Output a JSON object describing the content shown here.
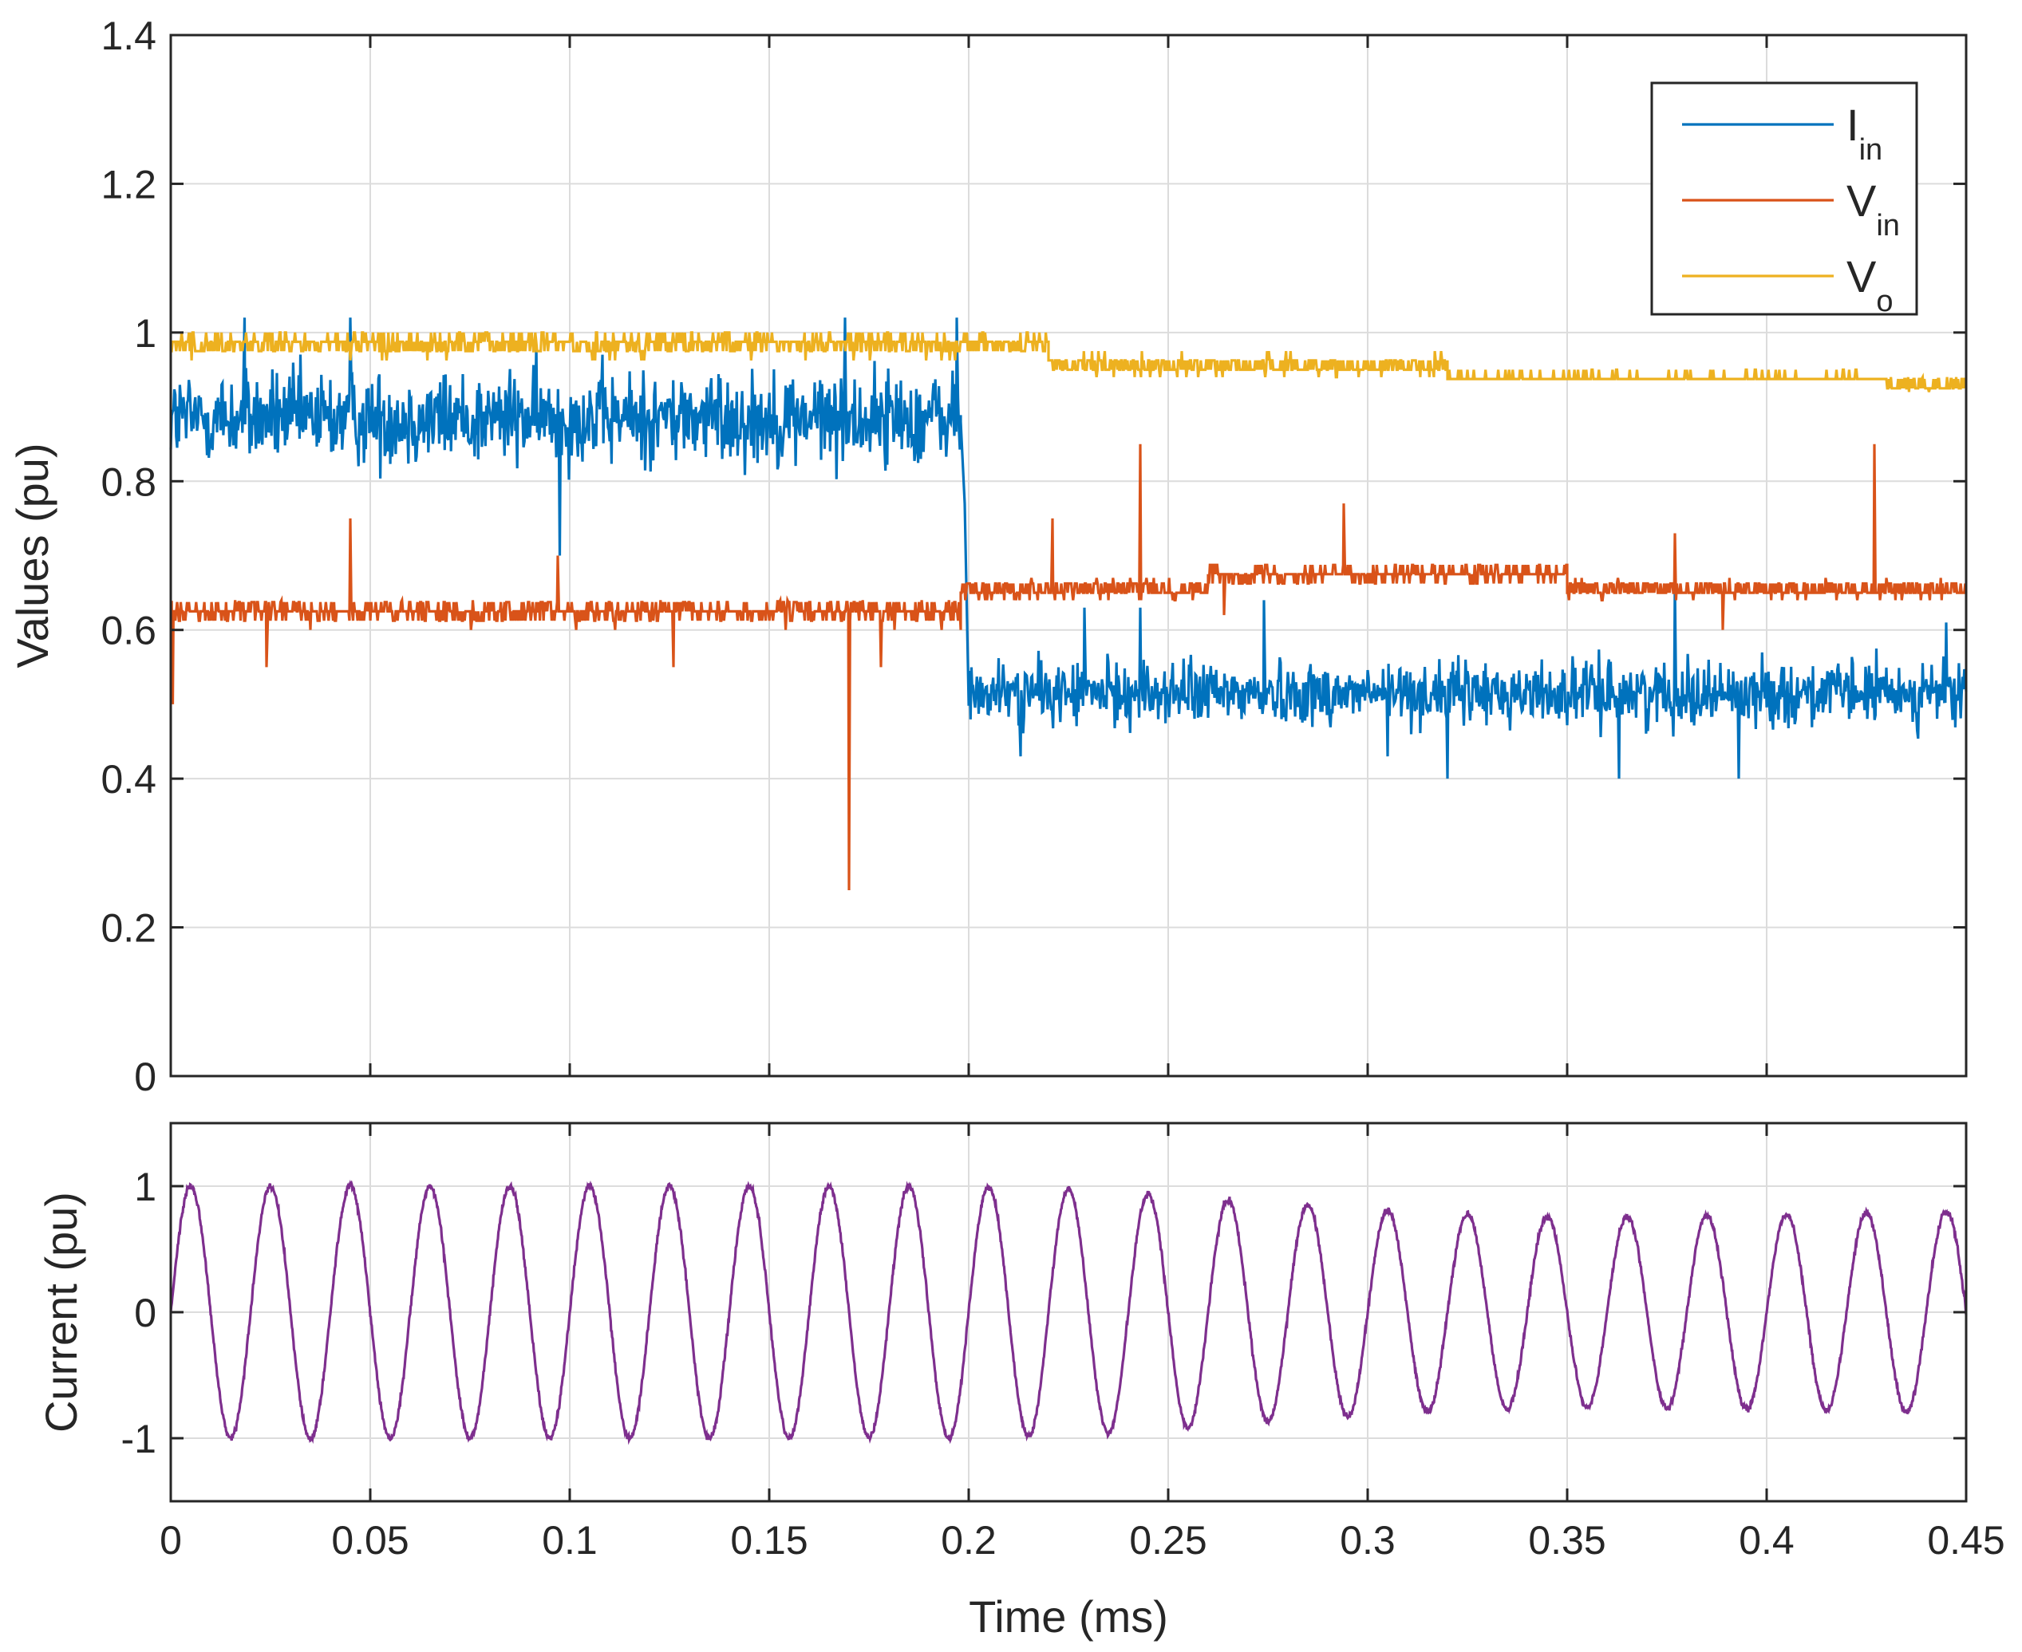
{
  "chart_data": [
    {
      "type": "line",
      "title": "",
      "xlabel": "",
      "ylabel": "Values (pu)",
      "xlim": [
        0,
        0.45
      ],
      "ylim": [
        0,
        1.4
      ],
      "grid": true,
      "legend": {
        "placement": "top-right"
      },
      "xticks": [
        0,
        0.05,
        0.1,
        0.15,
        0.2,
        0.25,
        0.3,
        0.35,
        0.4,
        0.45
      ],
      "xtick_labels": [
        "0",
        "0.05",
        "0.1",
        "0.15",
        "0.2",
        "0.25",
        "0.3",
        "0.35",
        "0.4",
        "0.45"
      ],
      "yticks": [
        0,
        0.2,
        0.4,
        0.6,
        0.8,
        1,
        1.2,
        1.4
      ],
      "ytick_labels": [
        "0",
        "0.2",
        "0.4",
        "0.6",
        "0.8",
        "1",
        "1.2",
        "1.4"
      ],
      "series": [
        {
          "name": "Iin",
          "legend_main": "I",
          "legend_sub": "in",
          "color": "#0072BD",
          "segments": [
            {
              "x_start": 0,
              "x_end": 0.198,
              "mean": 0.885,
              "noise": 0.045,
              "min": 0.76,
              "max": 1.02
            },
            {
              "x_start": 0.2,
              "x_end": 0.45,
              "mean": 0.515,
              "noise": 0.03,
              "min": 0.4,
              "max": 0.66
            }
          ],
          "spikes": [
            {
              "x": 0.0975,
              "y": 0.7
            },
            {
              "x": 0.0185,
              "y": 1.02
            },
            {
              "x": 0.045,
              "y": 1.02
            },
            {
              "x": 0.169,
              "y": 1.02
            },
            {
              "x": 0.197,
              "y": 1.02
            },
            {
              "x": 0.229,
              "y": 0.63
            },
            {
              "x": 0.243,
              "y": 0.63
            },
            {
              "x": 0.274,
              "y": 0.64
            },
            {
              "x": 0.377,
              "y": 0.66
            },
            {
              "x": 0.305,
              "y": 0.43
            },
            {
              "x": 0.32,
              "y": 0.4
            },
            {
              "x": 0.363,
              "y": 0.4
            },
            {
              "x": 0.393,
              "y": 0.4
            },
            {
              "x": 0.213,
              "y": 0.43
            },
            {
              "x": 0.445,
              "y": 0.61
            }
          ],
          "transition": {
            "x_start": 0.198,
            "x_end": 0.2,
            "y_from": 0.88,
            "y_to": 0.5
          }
        },
        {
          "name": "Vin",
          "legend_main": "V",
          "legend_sub": "in",
          "color": "#D95319",
          "segments": [
            {
              "x_start": 0,
              "x_end": 0.198,
              "mean": 0.625,
              "noise": 0.012,
              "min": 0.6,
              "max": 0.64
            },
            {
              "x_start": 0.198,
              "x_end": 0.26,
              "mean": 0.655,
              "noise": 0.01,
              "min": 0.64,
              "max": 0.67
            },
            {
              "x_start": 0.26,
              "x_end": 0.35,
              "mean": 0.675,
              "noise": 0.01,
              "min": 0.66,
              "max": 0.69
            },
            {
              "x_start": 0.35,
              "x_end": 0.45,
              "mean": 0.655,
              "noise": 0.01,
              "min": 0.64,
              "max": 0.67
            }
          ],
          "spikes": [
            {
              "x": 0.0005,
              "y": 0.5
            },
            {
              "x": 0.045,
              "y": 0.75
            },
            {
              "x": 0.097,
              "y": 0.7
            },
            {
              "x": 0.024,
              "y": 0.55
            },
            {
              "x": 0.126,
              "y": 0.55
            },
            {
              "x": 0.17,
              "y": 0.25
            },
            {
              "x": 0.178,
              "y": 0.55
            },
            {
              "x": 0.221,
              "y": 0.75
            },
            {
              "x": 0.243,
              "y": 0.85
            },
            {
              "x": 0.294,
              "y": 0.77
            },
            {
              "x": 0.377,
              "y": 0.73
            },
            {
              "x": 0.427,
              "y": 0.85
            },
            {
              "x": 0.389,
              "y": 0.6
            },
            {
              "x": 0.264,
              "y": 0.62
            }
          ]
        },
        {
          "name": "Vo",
          "legend_main": "V",
          "legend_sub": "o",
          "color": "#EDB120",
          "segments": [
            {
              "x_start": 0,
              "x_end": 0.22,
              "mean": 0.985,
              "noise": 0.012,
              "min": 0.95,
              "max": 1.0
            },
            {
              "x_start": 0.22,
              "x_end": 0.32,
              "mean": 0.955,
              "noise": 0.01,
              "min": 0.94,
              "max": 0.99
            },
            {
              "x_start": 0.32,
              "x_end": 0.43,
              "mean": 0.94,
              "noise": 0.004,
              "min": 0.92,
              "max": 0.95
            },
            {
              "x_start": 0.43,
              "x_end": 0.45,
              "mean": 0.93,
              "noise": 0.01,
              "min": 0.92,
              "max": 0.94
            }
          ],
          "spikes": []
        }
      ]
    },
    {
      "type": "line",
      "title": "",
      "xlabel": "Time (ms)",
      "ylabel": "Current (pu)",
      "xlim": [
        0,
        0.45
      ],
      "ylim": [
        -1.5,
        1.5
      ],
      "grid": true,
      "xticks": [
        0,
        0.05,
        0.1,
        0.15,
        0.2,
        0.25,
        0.3,
        0.35,
        0.4,
        0.45
      ],
      "xtick_labels": [
        "0",
        "0.05",
        "0.1",
        "0.15",
        "0.2",
        "0.25",
        "0.3",
        "0.35",
        "0.4",
        "0.45"
      ],
      "yticks": [
        -1,
        0,
        1
      ],
      "ytick_labels": [
        "-1",
        "0",
        "1"
      ],
      "series": [
        {
          "name": "Current",
          "color": "#7E2F8E",
          "waveform": "sine",
          "period_ms": 0.02,
          "amplitude_points": [
            {
              "x": 0,
              "a": 1.0
            },
            {
              "x": 0.2,
              "a": 1.0
            },
            {
              "x": 0.23,
              "a": 0.97
            },
            {
              "x": 0.27,
              "a": 0.88
            },
            {
              "x": 0.31,
              "a": 0.8
            },
            {
              "x": 0.35,
              "a": 0.75
            },
            {
              "x": 0.45,
              "a": 0.8
            }
          ]
        }
      ]
    }
  ]
}
